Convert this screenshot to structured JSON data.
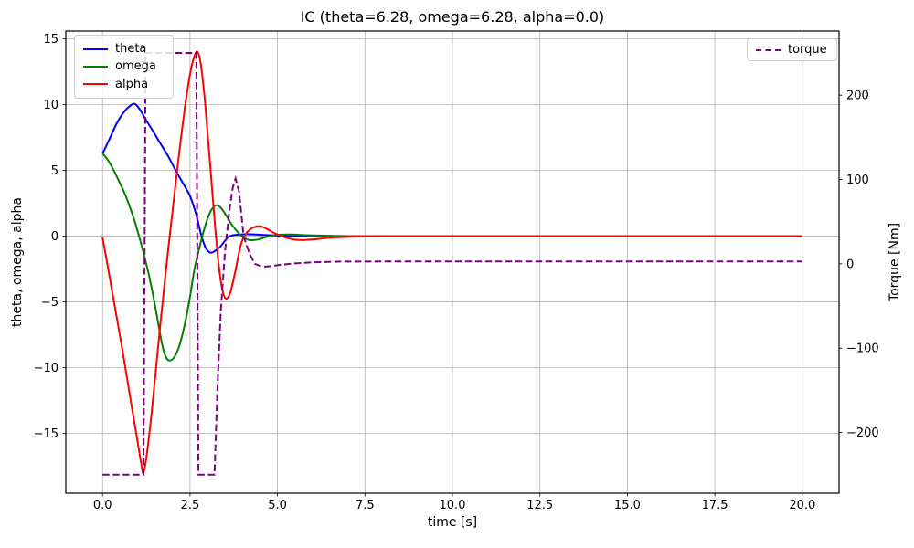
{
  "chart_data": {
    "type": "line",
    "title": "IC (theta=6.28, omega=6.28, alpha=0.0)",
    "xlabel": "time [s]",
    "ylabel_left": "theta, omega, alpha",
    "ylabel_right": "Torque [Nm]",
    "grid": true,
    "grid_color": "#b0b0b0",
    "background_color": "#ffffff",
    "xlim": [
      -1.05,
      21.05
    ],
    "ylim_left": [
      -19.55,
      15.6
    ],
    "ylim_right": [
      -272,
      276
    ],
    "xticks": {
      "values": [
        0,
        2.5,
        5,
        7.5,
        10,
        12.5,
        15,
        17.5,
        20
      ],
      "labels": [
        "0.0",
        "2.5",
        "5.0",
        "7.5",
        "10.0",
        "12.5",
        "15.0",
        "17.5",
        "20.0"
      ]
    },
    "yticks_left": {
      "values": [
        15,
        10,
        5,
        0,
        -5,
        -10,
        -15
      ],
      "labels": [
        "15",
        "10",
        "5",
        "0",
        "−5",
        "−10",
        "−15"
      ]
    },
    "yticks_right": {
      "values": [
        200,
        100,
        0,
        -100,
        -200
      ],
      "labels": [
        "200",
        "100",
        "0",
        "−100",
        "−200"
      ]
    },
    "legend_left": {
      "position": "upper-left",
      "items": [
        {
          "label": "theta",
          "color": "#0000ff",
          "dash": false
        },
        {
          "label": "omega",
          "color": "#008000",
          "dash": false
        },
        {
          "label": "alpha",
          "color": "#ff0000",
          "dash": false
        }
      ]
    },
    "legend_right": {
      "position": "upper-right",
      "items": [
        {
          "label": "torque",
          "color": "#800080",
          "dash": true
        }
      ]
    },
    "series": [
      {
        "name": "theta",
        "color": "#0000ff",
        "axis": "left",
        "dash": false,
        "smooth": true,
        "points": [
          [
            0,
            6.28
          ],
          [
            0.2,
            7.4
          ],
          [
            0.4,
            8.55
          ],
          [
            0.6,
            9.4
          ],
          [
            0.78,
            9.9
          ],
          [
            0.93,
            10.05
          ],
          [
            1.1,
            9.5
          ],
          [
            1.25,
            8.8
          ],
          [
            1.45,
            7.95
          ],
          [
            1.64,
            7.1
          ],
          [
            1.85,
            6.2
          ],
          [
            2.03,
            5.3
          ],
          [
            2.25,
            4.25
          ],
          [
            2.5,
            3.05
          ],
          [
            2.67,
            1.7
          ],
          [
            2.83,
            0.0
          ],
          [
            2.95,
            -0.9
          ],
          [
            3.08,
            -1.25
          ],
          [
            3.2,
            -1.15
          ],
          [
            3.38,
            -0.75
          ],
          [
            3.58,
            -0.1
          ],
          [
            3.75,
            0.08
          ],
          [
            3.95,
            0.13
          ],
          [
            4.3,
            0.14
          ],
          [
            4.7,
            0.08
          ],
          [
            5.2,
            0.03
          ],
          [
            5.8,
            0.01
          ],
          [
            6.8,
            0
          ],
          [
            8,
            0
          ],
          [
            10,
            0
          ],
          [
            12,
            0
          ],
          [
            14,
            0
          ],
          [
            16,
            0
          ],
          [
            18,
            0
          ],
          [
            20,
            0
          ]
        ]
      },
      {
        "name": "omega",
        "color": "#008000",
        "axis": "left",
        "dash": false,
        "smooth": true,
        "points": [
          [
            0,
            6.28
          ],
          [
            0.15,
            5.8
          ],
          [
            0.3,
            5.1
          ],
          [
            0.45,
            4.3
          ],
          [
            0.6,
            3.45
          ],
          [
            0.75,
            2.45
          ],
          [
            0.9,
            1.3
          ],
          [
            1.0,
            0.4
          ],
          [
            1.1,
            -0.55
          ],
          [
            1.25,
            -2.1
          ],
          [
            1.4,
            -3.9
          ],
          [
            1.55,
            -6.0
          ],
          [
            1.67,
            -7.8
          ],
          [
            1.78,
            -9.0
          ],
          [
            1.9,
            -9.45
          ],
          [
            2.05,
            -9.2
          ],
          [
            2.2,
            -8.3
          ],
          [
            2.35,
            -6.7
          ],
          [
            2.5,
            -4.6
          ],
          [
            2.62,
            -2.6
          ],
          [
            2.74,
            -1.2
          ],
          [
            2.85,
            0.0
          ],
          [
            2.97,
            1.1
          ],
          [
            3.1,
            1.95
          ],
          [
            3.25,
            2.35
          ],
          [
            3.4,
            2.1
          ],
          [
            3.55,
            1.5
          ],
          [
            3.7,
            0.85
          ],
          [
            3.85,
            0.35
          ],
          [
            4.0,
            -0.05
          ],
          [
            4.2,
            -0.3
          ],
          [
            4.45,
            -0.25
          ],
          [
            4.7,
            -0.05
          ],
          [
            5.0,
            0.1
          ],
          [
            5.4,
            0.12
          ],
          [
            5.9,
            0.07
          ],
          [
            6.6,
            0.02
          ],
          [
            7.5,
            0
          ],
          [
            9,
            0
          ],
          [
            11,
            0
          ],
          [
            13,
            0
          ],
          [
            15,
            0
          ],
          [
            17,
            0
          ],
          [
            19,
            0
          ],
          [
            20,
            0
          ]
        ]
      },
      {
        "name": "alpha",
        "color": "#ff0000",
        "axis": "left",
        "dash": false,
        "smooth": true,
        "points": [
          [
            0,
            -0.1
          ],
          [
            0.15,
            -2.3
          ],
          [
            0.3,
            -4.6
          ],
          [
            0.5,
            -7.6
          ],
          [
            0.7,
            -10.8
          ],
          [
            0.85,
            -13.2
          ],
          [
            1.0,
            -15.6
          ],
          [
            1.1,
            -17.2
          ],
          [
            1.17,
            -18.0
          ],
          [
            1.27,
            -16.5
          ],
          [
            1.4,
            -13.5
          ],
          [
            1.52,
            -10.3
          ],
          [
            1.64,
            -7.0
          ],
          [
            1.76,
            -3.9
          ],
          [
            1.88,
            -0.9
          ],
          [
            2.0,
            1.9
          ],
          [
            2.12,
            4.7
          ],
          [
            2.24,
            7.4
          ],
          [
            2.36,
            9.9
          ],
          [
            2.48,
            12.0
          ],
          [
            2.58,
            13.3
          ],
          [
            2.7,
            14.05
          ],
          [
            2.8,
            13.2
          ],
          [
            2.9,
            11.0
          ],
          [
            3.0,
            7.9
          ],
          [
            3.1,
            4.6
          ],
          [
            3.22,
            0.6
          ],
          [
            3.32,
            -2.2
          ],
          [
            3.42,
            -4.0
          ],
          [
            3.52,
            -4.75
          ],
          [
            3.65,
            -4.3
          ],
          [
            3.8,
            -2.6
          ],
          [
            3.92,
            -1.0
          ],
          [
            4.02,
            -0.15
          ],
          [
            4.15,
            0.35
          ],
          [
            4.3,
            0.65
          ],
          [
            4.5,
            0.76
          ],
          [
            4.7,
            0.55
          ],
          [
            4.9,
            0.25
          ],
          [
            5.12,
            0.0
          ],
          [
            5.4,
            -0.22
          ],
          [
            5.7,
            -0.3
          ],
          [
            6.05,
            -0.24
          ],
          [
            6.5,
            -0.12
          ],
          [
            7.2,
            -0.04
          ],
          [
            8,
            -0.01
          ],
          [
            9,
            0
          ],
          [
            11,
            0
          ],
          [
            13,
            0
          ],
          [
            15,
            0
          ],
          [
            17,
            0
          ],
          [
            19,
            0
          ],
          [
            20,
            0
          ]
        ]
      },
      {
        "name": "torque",
        "color": "#800080",
        "axis": "right",
        "dash": true,
        "smooth": false,
        "points": [
          [
            0,
            -250
          ],
          [
            1.17,
            -250
          ],
          [
            1.23,
            250
          ],
          [
            2.68,
            250
          ],
          [
            2.74,
            -250
          ],
          [
            2.8,
            -250
          ],
          [
            3.2,
            -250
          ],
          [
            3.28,
            -150
          ],
          [
            3.38,
            -55
          ],
          [
            3.5,
            15
          ],
          [
            3.62,
            62
          ],
          [
            3.72,
            90
          ],
          [
            3.8,
            101
          ],
          [
            3.9,
            86
          ],
          [
            4.03,
            33
          ],
          [
            4.2,
            12
          ],
          [
            4.35,
            0
          ],
          [
            4.5,
            -2.5
          ],
          [
            4.65,
            -3.3
          ],
          [
            4.85,
            -2.5
          ],
          [
            5.1,
            -1.0
          ],
          [
            5.5,
            0.5
          ],
          [
            6.0,
            1.8
          ],
          [
            6.8,
            2.6
          ],
          [
            8,
            2.8
          ],
          [
            10,
            2.8
          ],
          [
            12,
            2.8
          ],
          [
            14,
            2.8
          ],
          [
            16,
            2.8
          ],
          [
            18,
            2.8
          ],
          [
            20,
            2.8
          ]
        ]
      }
    ]
  }
}
